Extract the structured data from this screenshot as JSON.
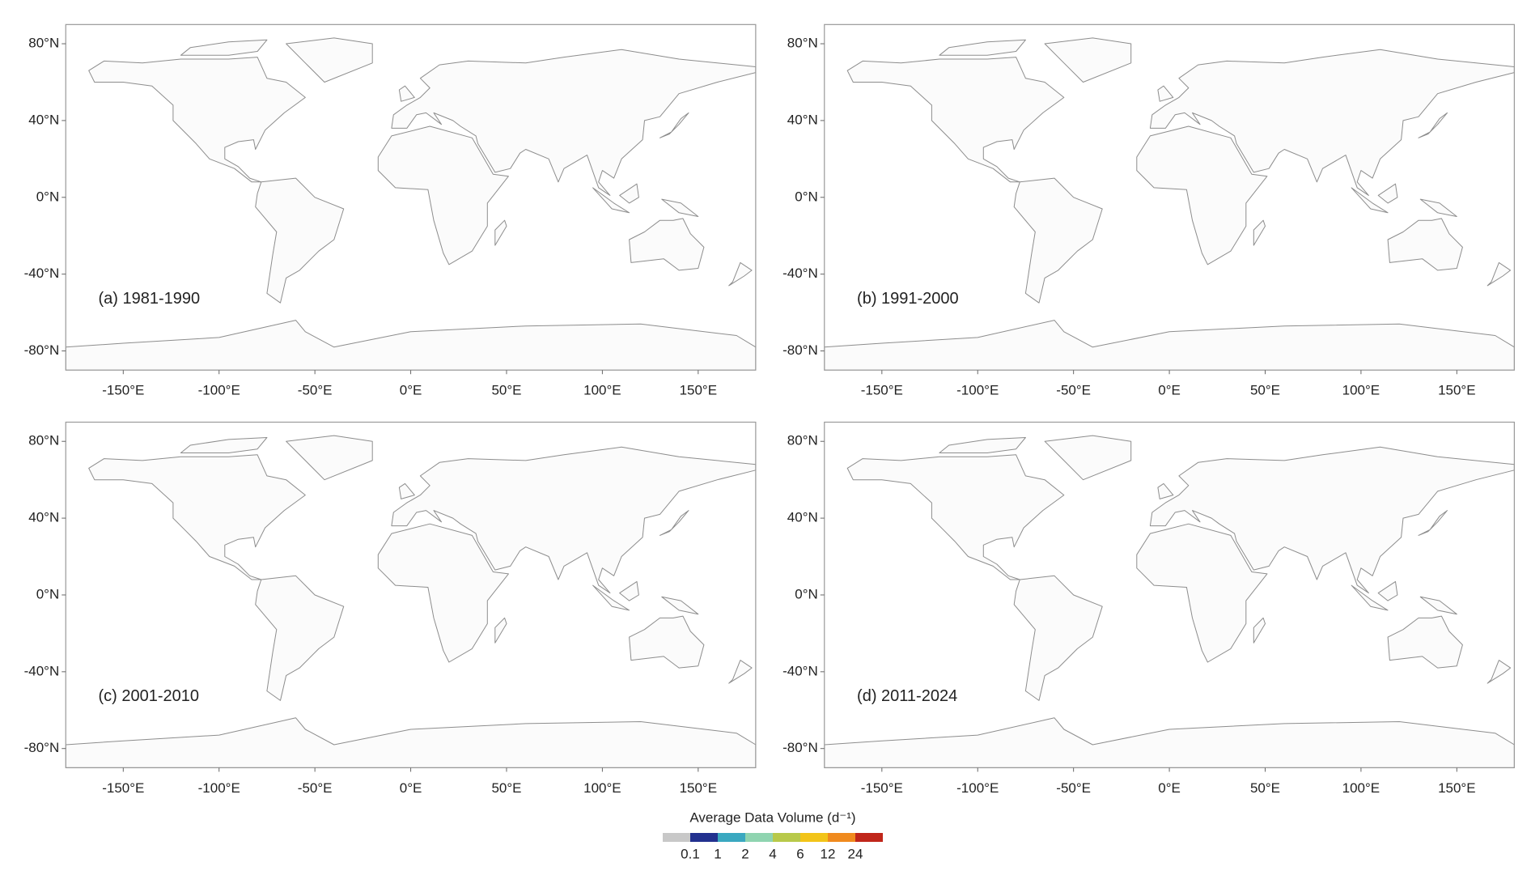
{
  "chart_data": [
    {
      "type": "map",
      "title": "(a) 1981-1990",
      "xlim": [
        -180,
        180
      ],
      "ylim": [
        -90,
        90
      ],
      "xticks": [
        {
          "value": -150,
          "label": "-150°E"
        },
        {
          "value": -100,
          "label": "-100°E"
        },
        {
          "value": -50,
          "label": "-50°E"
        },
        {
          "value": 0,
          "label": "0°E"
        },
        {
          "value": 50,
          "label": "50°E"
        },
        {
          "value": 100,
          "label": "100°E"
        },
        {
          "value": 150,
          "label": "150°E"
        }
      ],
      "yticks": [
        {
          "value": 80,
          "label": "80°N"
        },
        {
          "value": 40,
          "label": "40°N"
        },
        {
          "value": 0,
          "label": "0°N"
        },
        {
          "value": -40,
          "label": "-40°N"
        },
        {
          "value": -80,
          "label": "-80°N"
        }
      ]
    },
    {
      "type": "map",
      "title": "(b) 1991-2000",
      "xlim": [
        -180,
        180
      ],
      "ylim": [
        -90,
        90
      ],
      "xticks": [
        {
          "value": -150,
          "label": "-150°E"
        },
        {
          "value": -100,
          "label": "-100°E"
        },
        {
          "value": -50,
          "label": "-50°E"
        },
        {
          "value": 0,
          "label": "0°E"
        },
        {
          "value": 50,
          "label": "50°E"
        },
        {
          "value": 100,
          "label": "100°E"
        },
        {
          "value": 150,
          "label": "150°E"
        }
      ],
      "yticks": [
        {
          "value": 80,
          "label": "80°N"
        },
        {
          "value": 40,
          "label": "40°N"
        },
        {
          "value": 0,
          "label": "0°N"
        },
        {
          "value": -40,
          "label": "-40°N"
        },
        {
          "value": -80,
          "label": "-80°N"
        }
      ]
    },
    {
      "type": "map",
      "title": "(c) 2001-2010",
      "xlim": [
        -180,
        180
      ],
      "ylim": [
        -90,
        90
      ],
      "xticks": [
        {
          "value": -150,
          "label": "-150°E"
        },
        {
          "value": -100,
          "label": "-100°E"
        },
        {
          "value": -50,
          "label": "-50°E"
        },
        {
          "value": 0,
          "label": "0°E"
        },
        {
          "value": 50,
          "label": "50°E"
        },
        {
          "value": 100,
          "label": "100°E"
        },
        {
          "value": 150,
          "label": "150°E"
        }
      ],
      "yticks": [
        {
          "value": 80,
          "label": "80°N"
        },
        {
          "value": 40,
          "label": "40°N"
        },
        {
          "value": 0,
          "label": "0°N"
        },
        {
          "value": -40,
          "label": "-40°N"
        },
        {
          "value": -80,
          "label": "-80°N"
        }
      ]
    },
    {
      "type": "map",
      "title": "(d) 2011-2024",
      "xlim": [
        -180,
        180
      ],
      "ylim": [
        -90,
        90
      ],
      "xticks": [
        {
          "value": -150,
          "label": "-150°E"
        },
        {
          "value": -100,
          "label": "-100°E"
        },
        {
          "value": -50,
          "label": "-50°E"
        },
        {
          "value": 0,
          "label": "0°E"
        },
        {
          "value": 50,
          "label": "50°E"
        },
        {
          "value": 100,
          "label": "100°E"
        },
        {
          "value": 150,
          "label": "150°E"
        }
      ],
      "yticks": [
        {
          "value": 80,
          "label": "80°N"
        },
        {
          "value": 40,
          "label": "40°N"
        },
        {
          "value": 0,
          "label": "0°N"
        },
        {
          "value": -40,
          "label": "-40°N"
        },
        {
          "value": -80,
          "label": "-80°N"
        }
      ]
    }
  ],
  "colorbar": {
    "title": "Average Data Volume (d⁻¹)",
    "colors": [
      "#c8c8c8",
      "#22318f",
      "#3aa8c0",
      "#8fd4b0",
      "#b8c94a",
      "#f2c419",
      "#f08a1e",
      "#c0261a"
    ],
    "ticks": [
      0.1,
      1,
      2,
      4,
      6,
      12,
      24
    ]
  }
}
